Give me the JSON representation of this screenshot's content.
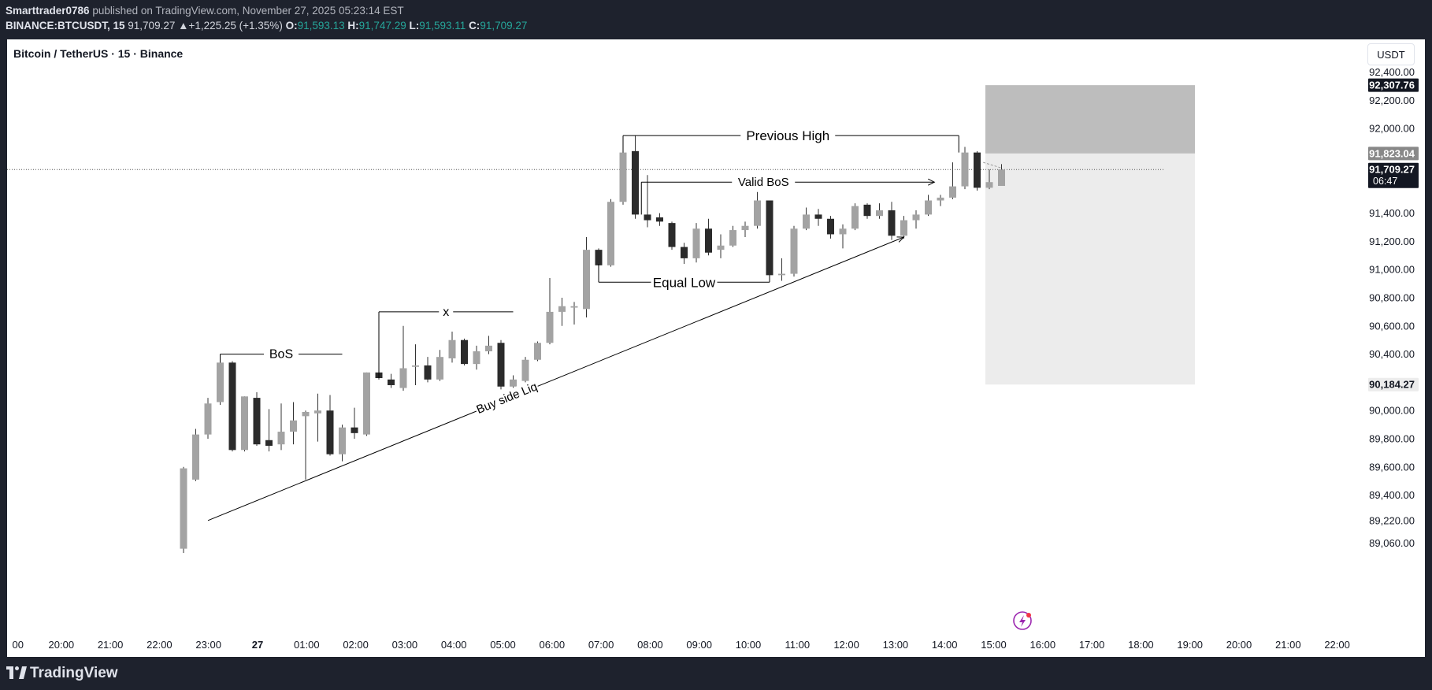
{
  "header": {
    "author": "Smarttrader0786",
    "published": "published on TradingView.com, November 27, 2025 05:23:14 EST",
    "symbol": "BINANCE:BTCUSDT, 15",
    "last": "91,709.27",
    "change": "▲+1,225.25 (+1.35%)",
    "o_label": "O:",
    "o": "91,593.13",
    "h_label": "H:",
    "h": "91,747.29",
    "l_label": "L:",
    "l": "91,593.11",
    "c_label": "C:",
    "c": "91,709.27"
  },
  "chart_title": "Bitcoin / TetherUS · 15 · Binance",
  "currency_button": "USDT",
  "footer": {
    "brand": "TradingView"
  },
  "colors": {
    "bg": "#1e222d",
    "up": "#a3a3a3",
    "down": "#2b2b2b",
    "positive": "#26a69a"
  },
  "chart_data": {
    "type": "candlestick",
    "title": "Bitcoin / TetherUS · 15 · Binance",
    "ylim": [
      88980,
      92560
    ],
    "y_ticks": [
      {
        "v": 92400,
        "label": "92,400.00"
      },
      {
        "v": 92200,
        "label": "92,200.00"
      },
      {
        "v": 92000,
        "label": "92,000.00"
      },
      {
        "v": 91400,
        "label": "91,400.00"
      },
      {
        "v": 91200,
        "label": "91,200.00"
      },
      {
        "v": 91000,
        "label": "91,000.00"
      },
      {
        "v": 90800,
        "label": "90,800.00"
      },
      {
        "v": 90600,
        "label": "90,600.00"
      },
      {
        "v": 90400,
        "label": "90,400.00"
      },
      {
        "v": 90000,
        "label": "90,000.00"
      },
      {
        "v": 89800,
        "label": "89,800.00"
      },
      {
        "v": 89600,
        "label": "89,600.00"
      },
      {
        "v": 89400,
        "label": "89,400.00"
      },
      {
        "v": 89220,
        "label": "89,220.00"
      },
      {
        "v": 89060,
        "label": "89,060.00"
      }
    ],
    "price_tags": [
      {
        "v": 92307.76,
        "label": "92,307.76",
        "style": "dark"
      },
      {
        "v": 91823.04,
        "label": "91,823.04",
        "style": "mid"
      },
      {
        "v": 91709.27,
        "label": "91,709.27",
        "sub": "06:47",
        "style": "dark"
      },
      {
        "v": 90184.27,
        "label": "90,184.27",
        "style": "light"
      }
    ],
    "x_ticks": [
      "00",
      "20:00",
      "21:00",
      "22:00",
      "23:00",
      "27",
      "01:00",
      "02:00",
      "03:00",
      "04:00",
      "05:00",
      "06:00",
      "07:00",
      "08:00",
      "09:00",
      "10:00",
      "11:00",
      "12:00",
      "13:00",
      "14:00",
      "15:00",
      "16:00",
      "17:00",
      "18:00",
      "19:00",
      "20:00",
      "21:00",
      "22:00"
    ],
    "candles": [
      {
        "t": "23:00",
        "o": 89020,
        "h": 89600,
        "l": 88990,
        "c": 89590
      },
      {
        "t": "23:15",
        "o": 89510,
        "h": 89870,
        "l": 89500,
        "c": 89830
      },
      {
        "t": "23:30",
        "o": 89830,
        "h": 90090,
        "l": 89800,
        "c": 90050
      },
      {
        "t": "23:45",
        "o": 90060,
        "h": 90360,
        "l": 90040,
        "c": 90340
      },
      {
        "t": "00:00",
        "o": 90340,
        "h": 90350,
        "l": 89710,
        "c": 89720
      },
      {
        "t": "00:15",
        "o": 89720,
        "h": 90100,
        "l": 89710,
        "c": 90100
      },
      {
        "t": "00:30",
        "o": 90090,
        "h": 90130,
        "l": 89750,
        "c": 89760
      },
      {
        "t": "00:45",
        "o": 89790,
        "h": 90010,
        "l": 89710,
        "c": 89750
      },
      {
        "t": "01:00",
        "o": 89760,
        "h": 90050,
        "l": 89720,
        "c": 89850
      },
      {
        "t": "01:15",
        "o": 89850,
        "h": 90060,
        "l": 89760,
        "c": 89930
      },
      {
        "t": "01:30",
        "o": 89960,
        "h": 90000,
        "l": 89510,
        "c": 89990
      },
      {
        "t": "01:45",
        "o": 89980,
        "h": 90120,
        "l": 89780,
        "c": 90000
      },
      {
        "t": "02:00",
        "o": 90000,
        "h": 90110,
        "l": 89680,
        "c": 89690
      },
      {
        "t": "02:15",
        "o": 89690,
        "h": 89900,
        "l": 89640,
        "c": 89880
      },
      {
        "t": "02:30",
        "o": 89880,
        "h": 90020,
        "l": 89800,
        "c": 89840
      },
      {
        "t": "02:45",
        "o": 89830,
        "h": 90270,
        "l": 89820,
        "c": 90270
      },
      {
        "t": "03:00",
        "o": 90270,
        "h": 90480,
        "l": 90220,
        "c": 90230
      },
      {
        "t": "03:15",
        "o": 90220,
        "h": 90260,
        "l": 90160,
        "c": 90180
      },
      {
        "t": "03:30",
        "o": 90160,
        "h": 90600,
        "l": 90140,
        "c": 90300
      },
      {
        "t": "03:45",
        "o": 90310,
        "h": 90470,
        "l": 90180,
        "c": 90320
      },
      {
        "t": "04:00",
        "o": 90320,
        "h": 90380,
        "l": 90200,
        "c": 90220
      },
      {
        "t": "04:15",
        "o": 90220,
        "h": 90430,
        "l": 90210,
        "c": 90380
      },
      {
        "t": "04:30",
        "o": 90370,
        "h": 90560,
        "l": 90340,
        "c": 90500
      },
      {
        "t": "04:45",
        "o": 90500,
        "h": 90510,
        "l": 90320,
        "c": 90330
      },
      {
        "t": "05:00",
        "o": 90330,
        "h": 90460,
        "l": 90290,
        "c": 90420
      },
      {
        "t": "05:15",
        "o": 90420,
        "h": 90530,
        "l": 90400,
        "c": 90460
      },
      {
        "t": "05:30",
        "o": 90480,
        "h": 90500,
        "l": 90150,
        "c": 90170
      },
      {
        "t": "05:45",
        "o": 90170,
        "h": 90250,
        "l": 90100,
        "c": 90220
      },
      {
        "t": "06:00",
        "o": 90210,
        "h": 90380,
        "l": 90200,
        "c": 90360
      },
      {
        "t": "06:15",
        "o": 90360,
        "h": 90490,
        "l": 90350,
        "c": 90480
      },
      {
        "t": "06:30",
        "o": 90480,
        "h": 90940,
        "l": 90470,
        "c": 90700
      },
      {
        "t": "06:45",
        "o": 90700,
        "h": 90800,
        "l": 90600,
        "c": 90740
      },
      {
        "t": "07:00",
        "o": 90730,
        "h": 90770,
        "l": 90610,
        "c": 90740
      },
      {
        "t": "07:15",
        "o": 90720,
        "h": 91230,
        "l": 90660,
        "c": 91140
      },
      {
        "t": "07:30",
        "o": 91140,
        "h": 91150,
        "l": 90950,
        "c": 91030
      },
      {
        "t": "07:45",
        "o": 91030,
        "h": 91500,
        "l": 91020,
        "c": 91480
      },
      {
        "t": "08:00",
        "o": 91480,
        "h": 91890,
        "l": 91460,
        "c": 91830
      },
      {
        "t": "08:15",
        "o": 91840,
        "h": 91950,
        "l": 91360,
        "c": 91390
      },
      {
        "t": "08:30",
        "o": 91390,
        "h": 91670,
        "l": 91300,
        "c": 91350
      },
      {
        "t": "08:45",
        "o": 91370,
        "h": 91400,
        "l": 91310,
        "c": 91340
      },
      {
        "t": "09:00",
        "o": 91330,
        "h": 91340,
        "l": 91140,
        "c": 91160
      },
      {
        "t": "09:15",
        "o": 91160,
        "h": 91190,
        "l": 91040,
        "c": 91080
      },
      {
        "t": "09:30",
        "o": 91080,
        "h": 91330,
        "l": 91050,
        "c": 91290
      },
      {
        "t": "09:45",
        "o": 91290,
        "h": 91360,
        "l": 91100,
        "c": 91120
      },
      {
        "t": "10:00",
        "o": 91140,
        "h": 91250,
        "l": 91080,
        "c": 91170
      },
      {
        "t": "10:15",
        "o": 91170,
        "h": 91310,
        "l": 91160,
        "c": 91280
      },
      {
        "t": "10:30",
        "o": 91280,
        "h": 91340,
        "l": 91230,
        "c": 91310
      },
      {
        "t": "10:45",
        "o": 91310,
        "h": 91550,
        "l": 91290,
        "c": 91490
      },
      {
        "t": "11:00",
        "o": 91490,
        "h": 91490,
        "l": 90950,
        "c": 90960
      },
      {
        "t": "11:15",
        "o": 90960,
        "h": 91080,
        "l": 90920,
        "c": 90970
      },
      {
        "t": "11:30",
        "o": 90970,
        "h": 91310,
        "l": 90950,
        "c": 91290
      },
      {
        "t": "11:45",
        "o": 91290,
        "h": 91440,
        "l": 91280,
        "c": 91390
      },
      {
        "t": "12:00",
        "o": 91390,
        "h": 91430,
        "l": 91310,
        "c": 91360
      },
      {
        "t": "12:15",
        "o": 91360,
        "h": 91380,
        "l": 91220,
        "c": 91250
      },
      {
        "t": "12:30",
        "o": 91250,
        "h": 91320,
        "l": 91150,
        "c": 91290
      },
      {
        "t": "12:45",
        "o": 91290,
        "h": 91470,
        "l": 91280,
        "c": 91450
      },
      {
        "t": "13:00",
        "o": 91460,
        "h": 91470,
        "l": 91360,
        "c": 91380
      },
      {
        "t": "13:15",
        "o": 91380,
        "h": 91470,
        "l": 91360,
        "c": 91420
      },
      {
        "t": "13:30",
        "o": 91420,
        "h": 91480,
        "l": 91210,
        "c": 91240
      },
      {
        "t": "13:45",
        "o": 91240,
        "h": 91380,
        "l": 91220,
        "c": 91350
      },
      {
        "t": "14:00",
        "o": 91350,
        "h": 91420,
        "l": 91290,
        "c": 91390
      },
      {
        "t": "14:15",
        "o": 91390,
        "h": 91530,
        "l": 91380,
        "c": 91490
      },
      {
        "t": "14:30",
        "o": 91490,
        "h": 91530,
        "l": 91450,
        "c": 91510
      },
      {
        "t": "14:45",
        "o": 91510,
        "h": 91760,
        "l": 91500,
        "c": 91590
      },
      {
        "t": "15:00",
        "o": 91590,
        "h": 91870,
        "l": 91570,
        "c": 91830
      },
      {
        "t": "15:15",
        "o": 91830,
        "h": 91840,
        "l": 91560,
        "c": 91580
      },
      {
        "t": "15:30",
        "o": 91580,
        "h": 91710,
        "l": 91570,
        "c": 91620
      },
      {
        "t": "15:45",
        "o": 91593.13,
        "h": 91747.29,
        "l": 91593.11,
        "c": 91709.27
      }
    ],
    "annotations": [
      {
        "text": "BoS"
      },
      {
        "text": "x"
      },
      {
        "text": "Previous High"
      },
      {
        "text": "Valid BoS"
      },
      {
        "text": "Equal Low"
      },
      {
        "text": "Buy side Liq"
      }
    ],
    "position_box": {
      "top": 92307.76,
      "entry": 91823.04,
      "bottom": 90184.27
    },
    "last_price": 91709.27
  }
}
